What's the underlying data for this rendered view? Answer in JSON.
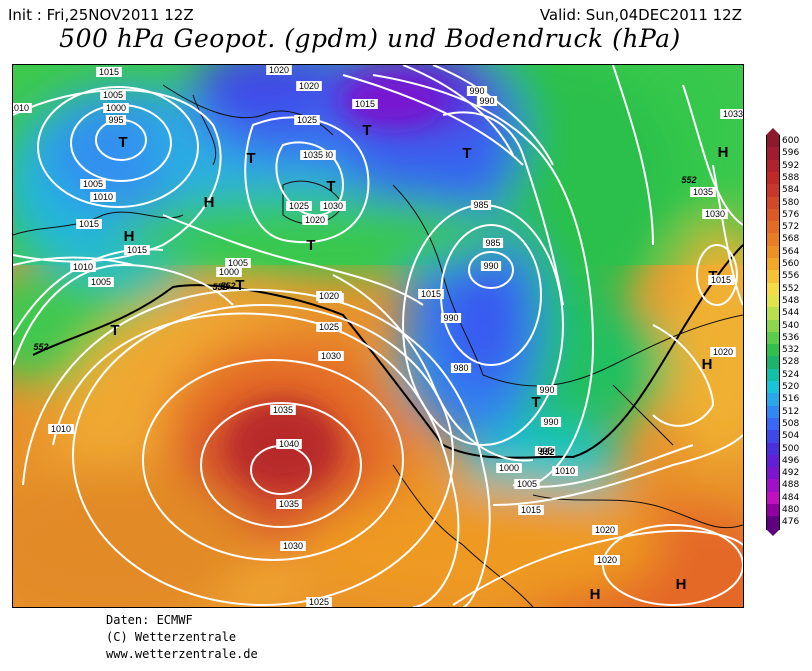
{
  "header": {
    "init": "Init : Fri,25NOV2011 12Z",
    "valid": "Valid: Sun,04DEC2011 12Z",
    "title": "500 hPa Geopot. (gpdm) und Bodendruck (hPa)"
  },
  "footer": {
    "line1": "Daten: ECMWF",
    "line2": "(C) Wetterzentrale",
    "line3": "www.wetterzentrale.de"
  },
  "legend": {
    "levels": [
      "600",
      "596",
      "592",
      "588",
      "584",
      "580",
      "576",
      "572",
      "568",
      "564",
      "560",
      "556",
      "552",
      "548",
      "544",
      "540",
      "536",
      "532",
      "528",
      "524",
      "520",
      "516",
      "512",
      "508",
      "504",
      "500",
      "496",
      "492",
      "488",
      "484",
      "480",
      "476"
    ],
    "colors": [
      "#8b1a2c",
      "#a01c30",
      "#b0222e",
      "#bf2a28",
      "#c8382a",
      "#d2482a",
      "#db5a28",
      "#e26c26",
      "#e87e24",
      "#ec9222",
      "#f0a828",
      "#f4c234",
      "#f4dc46",
      "#e0e44c",
      "#b8e04c",
      "#8cd84c",
      "#5ccc4c",
      "#32c04c",
      "#1cb46c",
      "#12c0a8",
      "#18c4d8",
      "#28a8e8",
      "#3088f0",
      "#3868f4",
      "#4048e8",
      "#4a30dc",
      "#6020d8",
      "#7c14d0",
      "#a010c8",
      "#c010c0",
      "#9000a0",
      "#600080"
    ]
  },
  "map": {
    "highs": [
      {
        "label": "H"
      },
      {
        "label": "H"
      },
      {
        "label": "H"
      },
      {
        "label": "H"
      },
      {
        "label": "H"
      },
      {
        "label": "H"
      },
      {
        "label": "H"
      }
    ],
    "lows": [
      {
        "label": "T"
      },
      {
        "label": "T"
      },
      {
        "label": "T"
      },
      {
        "label": "T"
      },
      {
        "label": "T"
      },
      {
        "label": "T"
      },
      {
        "label": "T"
      },
      {
        "label": "T"
      },
      {
        "label": "T"
      },
      {
        "label": "T"
      }
    ],
    "isobar_labels": [
      "1015",
      "1005",
      "1000",
      "995",
      "1005",
      "1010",
      "1015",
      "1015",
      "1010",
      "1005",
      "1000",
      "1005",
      "1020",
      "1020",
      "1025",
      "1030",
      "1025",
      "1035",
      "1030",
      "1025",
      "1020",
      "1015",
      "1015",
      "1020",
      "1025",
      "1030",
      "1035",
      "1040",
      "1035",
      "1030",
      "1025",
      "1010",
      "985",
      "990",
      "990",
      "990",
      "985",
      "990",
      "980",
      "990",
      "990",
      "995",
      "1000",
      "1005",
      "1010",
      "1015",
      "1020",
      "1020",
      "1035",
      "1030",
      "1015",
      "1020",
      "1033",
      "1010"
    ],
    "geopot_labels": [
      "552",
      "552",
      "552",
      "552",
      "552"
    ]
  }
}
